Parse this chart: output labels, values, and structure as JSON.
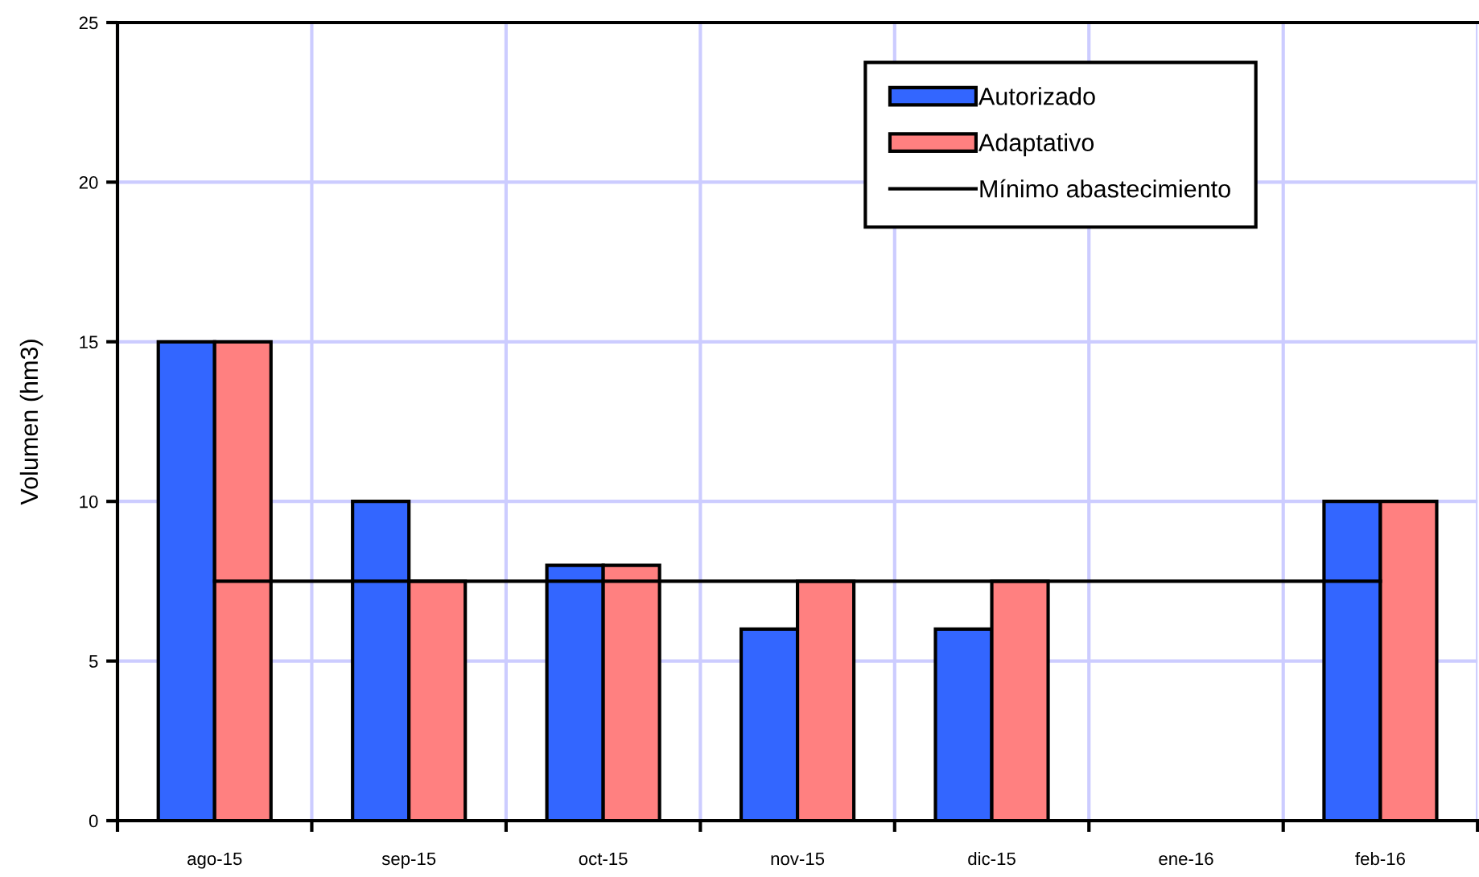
{
  "chart_data": {
    "type": "bar",
    "ylabel": "Volumen (hm3)",
    "categories": [
      "ago-15",
      "sep-15",
      "oct-15",
      "nov-15",
      "dic-15",
      "ene-16",
      "feb-16"
    ],
    "series": [
      {
        "name": "Autorizado",
        "color": "#3366ff",
        "values": [
          15,
          10,
          8,
          6,
          6,
          null,
          10
        ]
      },
      {
        "name": "Adaptativo",
        "color": "#ff8080",
        "values": [
          15,
          7.5,
          8,
          7.5,
          7.5,
          null,
          10
        ]
      },
      {
        "name": "Mínimo abastecimiento",
        "type": "line",
        "color": "#000000",
        "values": [
          7.5,
          7.5,
          7.5,
          7.5,
          7.5,
          7.5,
          7.5
        ]
      }
    ],
    "ylim": [
      0,
      25
    ],
    "yticks": [
      0,
      5,
      10,
      15,
      20,
      25
    ],
    "grid": true,
    "legend": "top right"
  }
}
